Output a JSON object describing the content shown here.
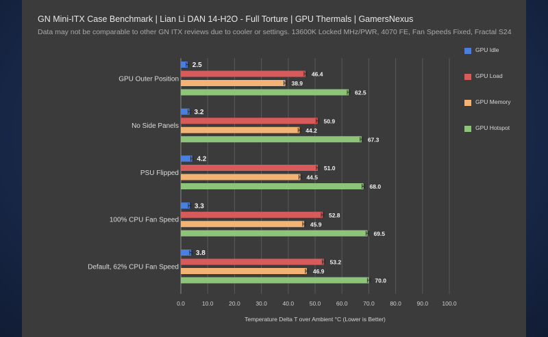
{
  "chart_data": {
    "type": "bar",
    "orientation": "horizontal",
    "title": "GN Mini-ITX Case Benchmark | Lian Li DAN 14-H2O - Full Torture | GPU Thermals | GamersNexus",
    "subtitle": "Data may not be comparable to other GN ITX reviews due to cooler or settings. 13600K Locked MHz/PWR, 4070 FE, Fan Speeds Fixed, Fractal S24",
    "xlabel": "Temperature Delta T over Ambient °C (Lower is Better)",
    "ylabel": "",
    "xlim": [
      0,
      100
    ],
    "xticks": [
      "0.0",
      "10.0",
      "20.0",
      "30.0",
      "40.0",
      "50.0",
      "60.0",
      "70.0",
      "80.0",
      "90.0",
      "100.0"
    ],
    "grid": true,
    "legend_position": "right",
    "categories": [
      "GPU Outer Position",
      "No Side Panels",
      "PSU Flipped",
      "100% CPU Fan Speed",
      "Default, 62% CPU Fan Speed"
    ],
    "series": [
      {
        "name": "GPU Idle",
        "color": "#4a7fe0",
        "values": [
          2.5,
          3.2,
          4.2,
          3.3,
          3.8
        ],
        "labels": [
          "2.5",
          "3.2",
          "4.2",
          "3.3",
          "3.8"
        ]
      },
      {
        "name": "GPU Load",
        "color": "#d75b5b",
        "values": [
          46.4,
          50.9,
          51.0,
          52.8,
          53.2
        ],
        "labels": [
          "46.4",
          "50.9",
          "51.0",
          "52.8",
          "53.2"
        ]
      },
      {
        "name": "GPU Memory",
        "color": "#f2b375",
        "values": [
          38.9,
          44.2,
          44.5,
          45.9,
          46.9
        ],
        "labels": [
          "38.9",
          "44.2",
          "44.5",
          "45.9",
          "46.9"
        ]
      },
      {
        "name": "GPU Hotspot",
        "color": "#8dc47a",
        "values": [
          62.5,
          67.3,
          68.0,
          69.5,
          70.0
        ],
        "labels": [
          "62.5",
          "67.3",
          "68.0",
          "69.5",
          "70.0"
        ]
      }
    ]
  }
}
